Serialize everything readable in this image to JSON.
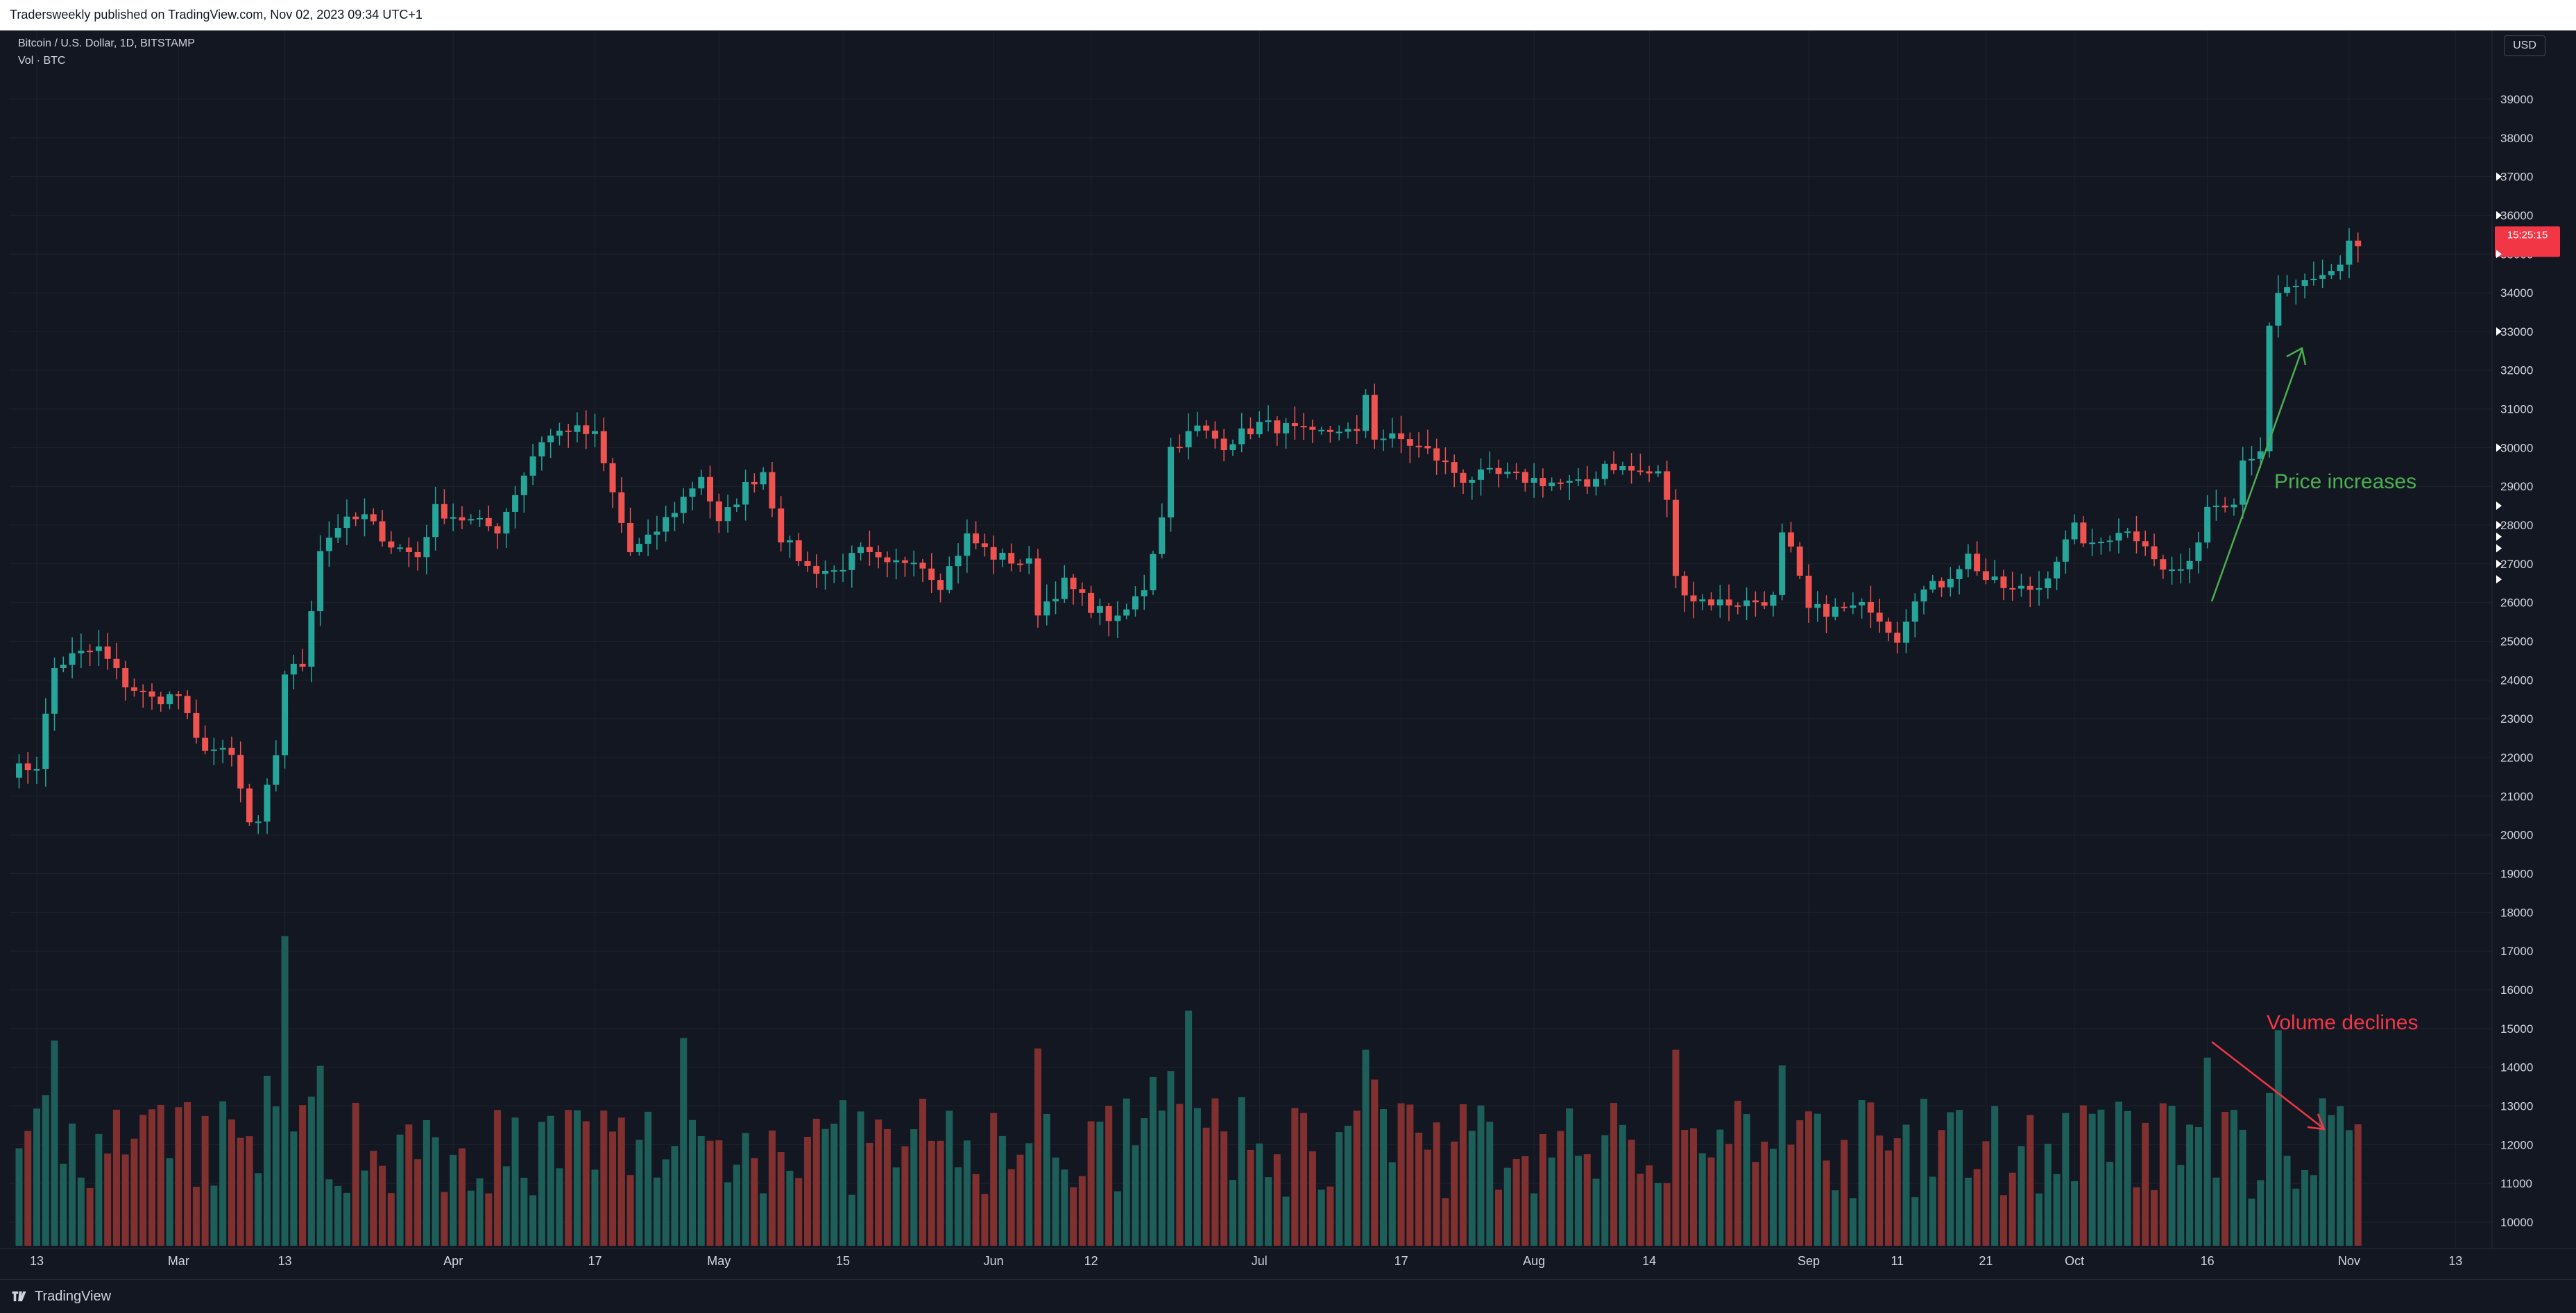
{
  "header": {
    "published": "Tradersweekly published on TradingView.com, Nov 02, 2023 09:34 UTC+1"
  },
  "legend": {
    "symbol": "Bitcoin / U.S. Dollar, 1D, BITSTAMP",
    "volume": "Vol · BTC"
  },
  "currency": "USD",
  "countdown": "15:25:15",
  "annotations": {
    "price": "Price increases",
    "volume": "Volume declines"
  },
  "footer": {
    "brand": "TradingView"
  },
  "colors": {
    "background": "#131722",
    "up": "#26a69a",
    "down": "#ef5350",
    "up_volume": "#1e5e59",
    "down_volume": "#80312f",
    "price_arrow": "#4caf50",
    "volume_arrow": "#f23645",
    "grid": "#1e222d"
  },
  "chart_data": {
    "type": "candlestick",
    "title": "Bitcoin / U.S. Dollar, 1D, BITSTAMP",
    "ylim": [
      9500,
      40000
    ],
    "y_ticks": [
      10000,
      11000,
      12000,
      13000,
      14000,
      15000,
      16000,
      17000,
      18000,
      19000,
      20000,
      21000,
      22000,
      23000,
      24000,
      25000,
      26000,
      27000,
      28000,
      29000,
      30000,
      31000,
      32000,
      33000,
      34000,
      35000,
      36000,
      37000,
      38000,
      39000
    ],
    "x_ticks": [
      {
        "label": "13",
        "date": "2023-02-13"
      },
      {
        "label": "Mar",
        "date": "2023-03-01"
      },
      {
        "label": "13",
        "date": "2023-03-13"
      },
      {
        "label": "Apr",
        "date": "2023-04-01"
      },
      {
        "label": "17",
        "date": "2023-04-17"
      },
      {
        "label": "May",
        "date": "2023-05-01"
      },
      {
        "label": "15",
        "date": "2023-05-15"
      },
      {
        "label": "Jun",
        "date": "2023-06-01"
      },
      {
        "label": "12",
        "date": "2023-06-12"
      },
      {
        "label": "Jul",
        "date": "2023-07-01"
      },
      {
        "label": "17",
        "date": "2023-07-17"
      },
      {
        "label": "Aug",
        "date": "2023-08-01"
      },
      {
        "label": "14",
        "date": "2023-08-14"
      },
      {
        "label": "Sep",
        "date": "2023-09-01"
      },
      {
        "label": "11",
        "date": "2023-09-11"
      },
      {
        "label": "21",
        "date": "2023-09-21"
      },
      {
        "label": "Oct",
        "date": "2023-10-01"
      },
      {
        "label": "16",
        "date": "2023-10-16"
      },
      {
        "label": "Nov",
        "date": "2023-11-01"
      },
      {
        "label": "13",
        "date": "2023-11-13"
      }
    ],
    "close_series": [
      {
        "date": "2023-02-10",
        "close": 21650
      },
      {
        "date": "2023-02-13",
        "close": 21800
      },
      {
        "date": "2023-02-15",
        "close": 24300
      },
      {
        "date": "2023-02-17",
        "close": 24600
      },
      {
        "date": "2023-02-20",
        "close": 24800
      },
      {
        "date": "2023-02-23",
        "close": 23900
      },
      {
        "date": "2023-02-26",
        "close": 23500
      },
      {
        "date": "2023-03-01",
        "close": 23600
      },
      {
        "date": "2023-03-03",
        "close": 22400
      },
      {
        "date": "2023-03-07",
        "close": 22000
      },
      {
        "date": "2023-03-09",
        "close": 20300
      },
      {
        "date": "2023-03-10",
        "close": 20200
      },
      {
        "date": "2023-03-12",
        "close": 22100
      },
      {
        "date": "2023-03-13",
        "close": 24200
      },
      {
        "date": "2023-03-15",
        "close": 24400
      },
      {
        "date": "2023-03-17",
        "close": 27400
      },
      {
        "date": "2023-03-19",
        "close": 28000
      },
      {
        "date": "2023-03-22",
        "close": 28200
      },
      {
        "date": "2023-03-25",
        "close": 27500
      },
      {
        "date": "2023-03-28",
        "close": 27200
      },
      {
        "date": "2023-03-30",
        "close": 28400
      },
      {
        "date": "2023-04-03",
        "close": 28100
      },
      {
        "date": "2023-04-06",
        "close": 27900
      },
      {
        "date": "2023-04-10",
        "close": 29800
      },
      {
        "date": "2023-04-11",
        "close": 30200
      },
      {
        "date": "2023-04-14",
        "close": 30500
      },
      {
        "date": "2023-04-17",
        "close": 30300
      },
      {
        "date": "2023-04-19",
        "close": 28800
      },
      {
        "date": "2023-04-21",
        "close": 27300
      },
      {
        "date": "2023-04-23",
        "close": 27600
      },
      {
        "date": "2023-04-26",
        "close": 28400
      },
      {
        "date": "2023-04-29",
        "close": 29300
      },
      {
        "date": "2023-05-01",
        "close": 28000
      },
      {
        "date": "2023-05-04",
        "close": 29000
      },
      {
        "date": "2023-05-06",
        "close": 29400
      },
      {
        "date": "2023-05-08",
        "close": 27700
      },
      {
        "date": "2023-05-11",
        "close": 26900
      },
      {
        "date": "2023-05-14",
        "close": 26800
      },
      {
        "date": "2023-05-17",
        "close": 27300
      },
      {
        "date": "2023-05-20",
        "close": 26900
      },
      {
        "date": "2023-05-23",
        "close": 27200
      },
      {
        "date": "2023-05-26",
        "close": 26500
      },
      {
        "date": "2023-05-29",
        "close": 27700
      },
      {
        "date": "2023-06-01",
        "close": 27200
      },
      {
        "date": "2023-06-05",
        "close": 27000
      },
      {
        "date": "2023-06-06",
        "close": 25800
      },
      {
        "date": "2023-06-09",
        "close": 26500
      },
      {
        "date": "2023-06-12",
        "close": 25900
      },
      {
        "date": "2023-06-15",
        "close": 25500
      },
      {
        "date": "2023-06-18",
        "close": 26400
      },
      {
        "date": "2023-06-20",
        "close": 28300
      },
      {
        "date": "2023-06-21",
        "close": 30000
      },
      {
        "date": "2023-06-24",
        "close": 30500
      },
      {
        "date": "2023-06-27",
        "close": 30100
      },
      {
        "date": "2023-07-01",
        "close": 30600
      },
      {
        "date": "2023-07-04",
        "close": 30500
      },
      {
        "date": "2023-07-07",
        "close": 30300
      },
      {
        "date": "2023-07-10",
        "close": 30500
      },
      {
        "date": "2023-07-12",
        "close": 30300
      },
      {
        "date": "2023-07-13",
        "close": 31400
      },
      {
        "date": "2023-07-14",
        "close": 30300
      },
      {
        "date": "2023-07-17",
        "close": 30200
      },
      {
        "date": "2023-07-20",
        "close": 29900
      },
      {
        "date": "2023-07-24",
        "close": 29200
      },
      {
        "date": "2023-07-27",
        "close": 29300
      },
      {
        "date": "2023-07-31",
        "close": 29200
      },
      {
        "date": "2023-08-03",
        "close": 29100
      },
      {
        "date": "2023-08-07",
        "close": 29000
      },
      {
        "date": "2023-08-09",
        "close": 29600
      },
      {
        "date": "2023-08-12",
        "close": 29400
      },
      {
        "date": "2023-08-15",
        "close": 29300
      },
      {
        "date": "2023-08-16",
        "close": 28700
      },
      {
        "date": "2023-08-17",
        "close": 26600
      },
      {
        "date": "2023-08-19",
        "close": 26100
      },
      {
        "date": "2023-08-22",
        "close": 26000
      },
      {
        "date": "2023-08-25",
        "close": 26000
      },
      {
        "date": "2023-08-28",
        "close": 26100
      },
      {
        "date": "2023-08-29",
        "close": 27700
      },
      {
        "date": "2023-08-30",
        "close": 27300
      },
      {
        "date": "2023-09-01",
        "close": 25800
      },
      {
        "date": "2023-09-04",
        "close": 25800
      },
      {
        "date": "2023-09-08",
        "close": 25900
      },
      {
        "date": "2023-09-11",
        "close": 25100
      },
      {
        "date": "2023-09-13",
        "close": 26200
      },
      {
        "date": "2023-09-16",
        "close": 26500
      },
      {
        "date": "2023-09-19",
        "close": 27200
      },
      {
        "date": "2023-09-21",
        "close": 26600
      },
      {
        "date": "2023-09-24",
        "close": 26300
      },
      {
        "date": "2023-09-27",
        "close": 26400
      },
      {
        "date": "2023-10-01",
        "close": 27900
      },
      {
        "date": "2023-10-03",
        "close": 27400
      },
      {
        "date": "2023-10-06",
        "close": 27900
      },
      {
        "date": "2023-10-09",
        "close": 27600
      },
      {
        "date": "2023-10-11",
        "close": 26800
      },
      {
        "date": "2023-10-14",
        "close": 26900
      },
      {
        "date": "2023-10-16",
        "close": 28500
      },
      {
        "date": "2023-10-19",
        "close": 28700
      },
      {
        "date": "2023-10-20",
        "close": 29700
      },
      {
        "date": "2023-10-22",
        "close": 30000
      },
      {
        "date": "2023-10-23",
        "close": 33000
      },
      {
        "date": "2023-10-24",
        "close": 33900
      },
      {
        "date": "2023-10-26",
        "close": 34200
      },
      {
        "date": "2023-10-28",
        "close": 34200
      },
      {
        "date": "2023-10-30",
        "close": 34500
      },
      {
        "date": "2023-10-31",
        "close": 34700
      },
      {
        "date": "2023-11-01",
        "close": 35400
      },
      {
        "date": "2023-11-02",
        "close": 35200
      }
    ],
    "volume_highlights": [
      {
        "date": "2023-03-13",
        "volume": 17200
      },
      {
        "date": "2023-04-27",
        "volume": 14600
      },
      {
        "date": "2023-06-23",
        "volume": 15300
      },
      {
        "date": "2023-07-13",
        "volume": 14300
      },
      {
        "date": "2023-08-17",
        "volume": 14300
      },
      {
        "date": "2023-08-29",
        "volume": 13900
      },
      {
        "date": "2023-10-16",
        "volume": 14100
      },
      {
        "date": "2023-10-24",
        "volume": 14800
      }
    ]
  }
}
